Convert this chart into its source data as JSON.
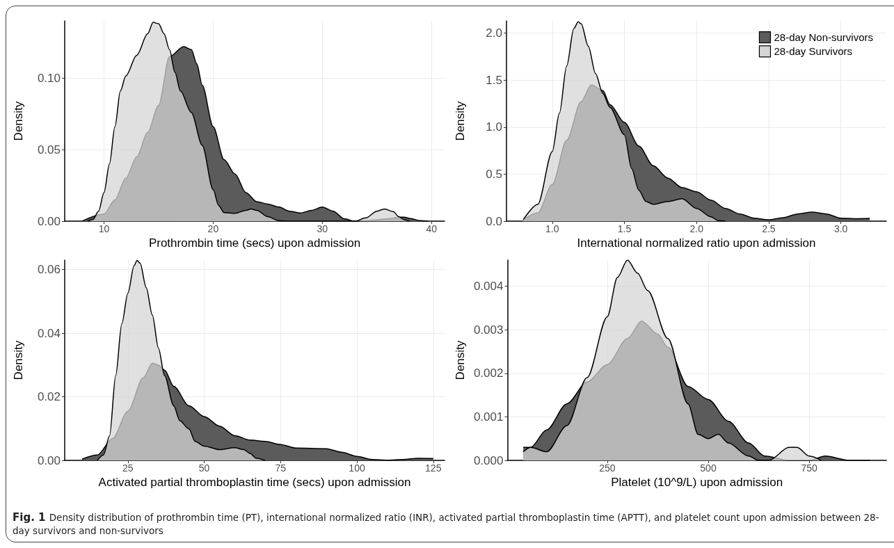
{
  "chart_data": [
    {
      "type": "area",
      "xlabel": "Prothrombin time (secs) upon admission",
      "ylabel": "Density",
      "xlim": [
        6.4,
        41.2
      ],
      "ylim": [
        0,
        0.14
      ],
      "xticks": [
        10,
        20,
        30,
        40
      ],
      "yticks": [
        {
          "value": 0,
          "label": "0.00"
        },
        {
          "value": 0.05,
          "label": "0.05"
        },
        {
          "value": 0.1,
          "label": "0.10"
        }
      ],
      "grid": true,
      "annotations": [
        "Fig. 1",
        "Density distribution of prothrombin time (PT), international normalized ratio (INR), activated partial thromboplastin time (APTT), and platelet count upon admission between 28-day survivors and non-survivors"
      ],
      "series": [
        {
          "color": "#5b5b5b",
          "x": [
            8,
            10,
            11,
            12,
            13,
            14,
            15,
            16,
            17.3,
            18,
            18.5,
            19,
            20,
            21,
            22,
            23,
            24,
            25,
            26,
            27,
            28,
            29,
            30,
            31,
            32,
            33,
            34,
            35,
            36,
            37,
            37.5,
            38,
            39,
            39.7
          ],
          "values": [
            0,
            0.005,
            0.015,
            0.03,
            0.045,
            0.062,
            0.081,
            0.115,
            0.122,
            0.12,
            0.11,
            0.095,
            0.066,
            0.043,
            0.033,
            0.02,
            0.0137,
            0.012,
            0.01,
            0.007,
            0.0057,
            0.0076,
            0.0099,
            0.007,
            0.0017,
            0,
            0.0004,
            0.001,
            0.0017,
            0.0027,
            0.0029,
            0.002,
            0.0004,
            0
          ]
        },
        {
          "color": "#d6d6d6",
          "x": [
            8.5,
            9,
            9.5,
            10,
            10.5,
            11,
            11.5,
            12,
            13,
            14,
            14.5,
            15,
            15.5,
            16,
            16.5,
            17,
            18,
            19,
            20,
            20.5,
            21,
            22,
            23,
            23.5,
            24,
            25,
            26,
            27,
            33,
            34,
            35,
            35.7,
            36.5,
            37,
            37.5,
            38
          ],
          "values": [
            0,
            0.0013,
            0.007,
            0.02,
            0.04,
            0.066,
            0.091,
            0.1015,
            0.116,
            0.131,
            0.139,
            0.138,
            0.131,
            0.12,
            0.104,
            0.091,
            0.076,
            0.053,
            0.022,
            0.011,
            0.006,
            0.0055,
            0.0076,
            0.0086,
            0.0076,
            0.0032,
            0.0004,
            0,
            0,
            0.0023,
            0.007,
            0.0086,
            0.0067,
            0.0032,
            0.001,
            0
          ]
        }
      ]
    },
    {
      "type": "area",
      "xlabel": "International normalized ratio upon admission",
      "ylabel": "Density",
      "xlim": [
        0.683,
        3.315
      ],
      "ylim": [
        0,
        2.13
      ],
      "xticks": [
        {
          "value": 1,
          "label": "1.0"
        },
        {
          "value": 1.5,
          "label": "1.5"
        },
        {
          "value": 2,
          "label": "2.0"
        },
        {
          "value": 2.5,
          "label": "2.5"
        },
        {
          "value": 3,
          "label": "3.0"
        }
      ],
      "yticks": [
        {
          "value": 0,
          "label": "0.0"
        },
        {
          "value": 0.5,
          "label": "0.5"
        },
        {
          "value": 1,
          "label": "1.0"
        },
        {
          "value": 1.5,
          "label": "1.5"
        },
        {
          "value": 2,
          "label": "2.0"
        }
      ],
      "grid": true,
      "legend": "top right",
      "series": [
        {
          "name": "28-day Non-survivors",
          "color": "#5b5b5b",
          "x": [
            0.8,
            0.9,
            1,
            1.1,
            1.2,
            1.27,
            1.35,
            1.4,
            1.5,
            1.6,
            1.7,
            1.8,
            1.9,
            2,
            2.1,
            2.2,
            2.3,
            2.4,
            2.5,
            2.6,
            2.7,
            2.8,
            2.9,
            3,
            3.1,
            3.2
          ],
          "values": [
            0.018,
            0.09,
            0.39,
            0.86,
            1.27,
            1.45,
            1.39,
            1.24,
            1.05,
            0.8,
            0.59,
            0.46,
            0.357,
            0.313,
            0.224,
            0.136,
            0.077,
            0.032,
            0.015,
            0.038,
            0.077,
            0.097,
            0.077,
            0.032,
            0.027,
            0.03
          ]
        },
        {
          "name": "28-day Survivors",
          "color": "#d6d6d6",
          "x": [
            0.8,
            0.9,
            1,
            1.05,
            1.1,
            1.15,
            1.18,
            1.2,
            1.25,
            1.3,
            1.35,
            1.4,
            1.5,
            1.55,
            1.6,
            1.65,
            1.7,
            1.8,
            1.9,
            2,
            2.1,
            2.15,
            2.2
          ],
          "values": [
            0.018,
            0.18,
            0.74,
            1.15,
            1.65,
            2.05,
            2.12,
            2.1,
            1.86,
            1.57,
            1.36,
            1.21,
            0.92,
            0.56,
            0.33,
            0.21,
            0.18,
            0.21,
            0.24,
            0.136,
            0.047,
            0.006,
            0
          ]
        }
      ]
    },
    {
      "type": "area",
      "xlabel": "Activated partial thromboplastin time (secs) upon admission",
      "ylabel": "Density",
      "xlim": [
        4.3,
        128.7
      ],
      "ylim": [
        0,
        0.063
      ],
      "xticks": [
        25,
        50,
        75,
        100,
        125
      ],
      "yticks": [
        {
          "value": 0,
          "label": "0.00"
        },
        {
          "value": 0.02,
          "label": "0.02"
        },
        {
          "value": 0.04,
          "label": "0.04"
        },
        {
          "value": 0.06,
          "label": "0.06"
        }
      ],
      "grid": true,
      "series": [
        {
          "color": "#5b5b5b",
          "x": [
            10,
            15,
            20,
            25,
            30,
            33,
            35,
            37,
            40,
            45,
            50,
            55,
            60,
            65,
            70,
            75,
            80,
            90,
            95,
            100,
            105,
            110,
            115,
            120,
            125
          ],
          "values": [
            0.0004,
            0.0017,
            0.0069,
            0.0155,
            0.026,
            0.0306,
            0.03,
            0.0284,
            0.0233,
            0.0172,
            0.0138,
            0.0108,
            0.0078,
            0.0064,
            0.006,
            0.005,
            0.0039,
            0.0037,
            0.0026,
            0.0013,
            0.0003,
            0.0001,
            0.0003,
            0.0007,
            0.0006
          ]
        },
        {
          "color": "#d6d6d6",
          "x": [
            15,
            17,
            19,
            21,
            23,
            25,
            27,
            28,
            29,
            31,
            33,
            35,
            37,
            40,
            42,
            45,
            47,
            50,
            55,
            60,
            63,
            65,
            67,
            70
          ],
          "values": [
            0,
            0.0017,
            0.0078,
            0.0267,
            0.043,
            0.0526,
            0.0612,
            0.0629,
            0.062,
            0.0543,
            0.0457,
            0.0353,
            0.0267,
            0.0172,
            0.0125,
            0.0099,
            0.006,
            0.0045,
            0.0034,
            0.004,
            0.0034,
            0.0022,
            0.0007,
            0
          ]
        }
      ]
    },
    {
      "type": "area",
      "xlabel": "Platelet (10^9/L) upon admission",
      "ylabel": "Density",
      "xlim": [
        2.9,
        941
      ],
      "ylim": [
        0,
        0.0046
      ],
      "xticks": [
        250,
        500,
        750
      ],
      "yticks": [
        {
          "value": 0,
          "label": "0.000"
        },
        {
          "value": 0.001,
          "label": "0.001"
        },
        {
          "value": 0.002,
          "label": "0.002"
        },
        {
          "value": 0.003,
          "label": "0.003"
        },
        {
          "value": 0.004,
          "label": "0.004"
        }
      ],
      "grid": true,
      "series": [
        {
          "color": "#5b5b5b",
          "x": [
            42,
            60,
            100,
            150,
            200,
            250,
            300,
            335,
            375,
            400,
            450,
            500,
            550,
            600,
            640,
            700,
            750,
            790,
            850,
            900
          ],
          "values": [
            0.0003,
            0.0003,
            0.0007,
            0.0013,
            0.0018,
            0.0022,
            0.0028,
            0.0032,
            0.0029,
            0.0026,
            0.0017,
            0.0014,
            0.0009,
            0.0004,
            0.0001,
            0,
            0,
            0.0001,
            0,
            0
          ]
        },
        {
          "color": "#d6d6d6",
          "x": [
            42,
            60,
            100,
            150,
            200,
            250,
            275,
            300,
            325,
            350,
            400,
            450,
            475,
            500,
            525,
            550,
            600,
            625,
            650,
            700,
            720,
            750,
            780
          ],
          "values": [
            0.0002,
            0.0003,
            0.0002,
            0.0008,
            0.0019,
            0.0033,
            0.0042,
            0.0046,
            0.0043,
            0.0039,
            0.0028,
            0.0013,
            0.0006,
            0.0005,
            0.0006,
            0.0004,
            0.0001,
            0,
            0,
            0.0003,
            0.0003,
            0.0001,
            0
          ]
        }
      ]
    }
  ]
}
